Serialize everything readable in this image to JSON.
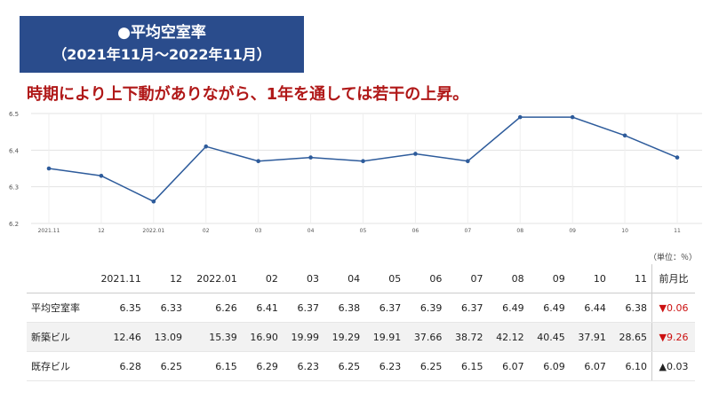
{
  "title": {
    "line1": "●平均空室率",
    "line2": "（2021年11月～2022年11月）"
  },
  "headline": "時期により上下動がありながら、1年を通しては若干の上昇。",
  "unit_note": "（単位：％）",
  "chart_data": {
    "type": "line",
    "categories": [
      "2021.11",
      "12",
      "2022.01",
      "02",
      "03",
      "04",
      "05",
      "06",
      "07",
      "08",
      "09",
      "10",
      "11"
    ],
    "series": [
      {
        "values": [
          6.35,
          6.33,
          6.26,
          6.41,
          6.37,
          6.38,
          6.37,
          6.39,
          6.37,
          6.49,
          6.49,
          6.44,
          6.38
        ]
      }
    ],
    "yticks": [
      "6.5",
      "6.4",
      "6.3",
      "6.2"
    ],
    "ylim": [
      6.2,
      6.5
    ],
    "grid": true,
    "line_color": "#2d5b9b",
    "title": "",
    "xlabel": "",
    "ylabel": ""
  },
  "table": {
    "headers": [
      "",
      "2021.11",
      "12",
      "2022.01",
      "02",
      "03",
      "04",
      "05",
      "06",
      "07",
      "08",
      "09",
      "10",
      "11",
      "前月比"
    ],
    "rows": [
      {
        "label": "平均空室率",
        "values": [
          "6.35",
          "6.33",
          "6.26",
          "6.41",
          "6.37",
          "6.38",
          "6.37",
          "6.39",
          "6.37",
          "6.49",
          "6.49",
          "6.44",
          "6.38"
        ],
        "change": "▼0.06",
        "direction": "down"
      },
      {
        "label": "新築ビル",
        "values": [
          "12.46",
          "13.09",
          "15.39",
          "16.90",
          "19.99",
          "19.29",
          "19.91",
          "37.66",
          "38.72",
          "42.12",
          "40.45",
          "37.91",
          "28.65"
        ],
        "change": "▼9.26",
        "direction": "down"
      },
      {
        "label": "既存ビル",
        "values": [
          "6.28",
          "6.25",
          "6.15",
          "6.29",
          "6.23",
          "6.25",
          "6.23",
          "6.25",
          "6.15",
          "6.07",
          "6.09",
          "6.07",
          "6.10"
        ],
        "change": "▲0.03",
        "direction": "up"
      }
    ]
  }
}
